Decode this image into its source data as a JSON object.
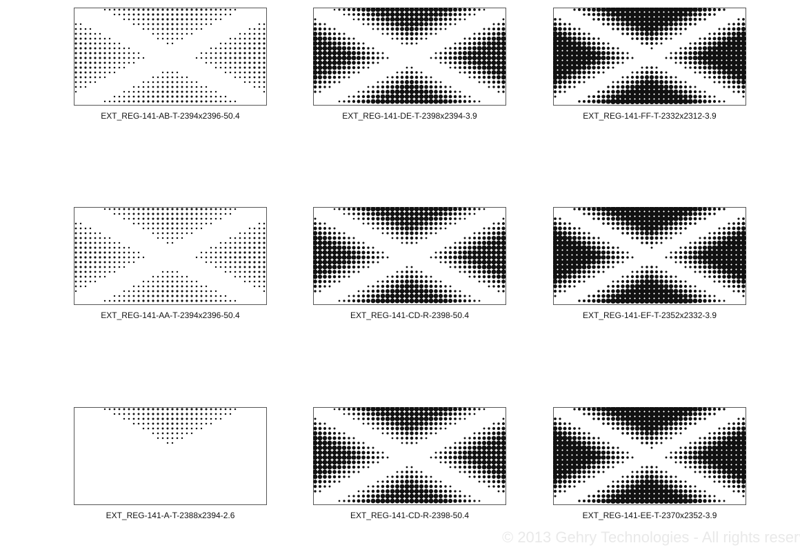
{
  "panels": [
    {
      "id": "p1",
      "label": "EXT_REG-141-AB-T-2394x2396-50.4",
      "density": "light",
      "triangles": [
        "top",
        "bottom",
        "left",
        "right"
      ]
    },
    {
      "id": "p2",
      "label": "EXT_REG-141-DE-T-2398x2394-3.9",
      "density": "medium",
      "triangles": [
        "top",
        "bottom",
        "left",
        "right"
      ]
    },
    {
      "id": "p3",
      "label": "EXT_REG-141-FF-T-2332x2312-3.9",
      "density": "heavy",
      "triangles": [
        "top",
        "bottom",
        "left",
        "right"
      ]
    },
    {
      "id": "p4",
      "label": "EXT_REG-141-AA-T-2394x2396-50.4",
      "density": "light",
      "triangles": [
        "top",
        "bottom",
        "left",
        "right"
      ]
    },
    {
      "id": "p5",
      "label": "EXT_REG-141-CD-R-2398-50.4",
      "density": "medium",
      "triangles": [
        "top",
        "bottom",
        "left",
        "right"
      ]
    },
    {
      "id": "p6",
      "label": "EXT_REG-141-EF-T-2352x2332-3.9",
      "density": "heavy",
      "triangles": [
        "top",
        "bottom",
        "left",
        "right"
      ]
    },
    {
      "id": "p7",
      "label": "EXT_REG-141-A-T-2388x2394-2.6",
      "density": "light",
      "triangles": [
        "top"
      ]
    },
    {
      "id": "p8",
      "label": "EXT_REG-141-CD-R-2398-50.4",
      "density": "medium",
      "triangles": [
        "top",
        "bottom",
        "left",
        "right"
      ]
    },
    {
      "id": "p9",
      "label": "EXT_REG-141-EE-T-2370x2352-3.9",
      "density": "heavy",
      "triangles": [
        "top",
        "bottom",
        "left",
        "right"
      ]
    }
  ],
  "watermark": "© 2013 Gehry Technologies - All rights reserved",
  "colors": {
    "dot": "#111111",
    "border": "#555555",
    "watermark": "#e9e9e9"
  }
}
